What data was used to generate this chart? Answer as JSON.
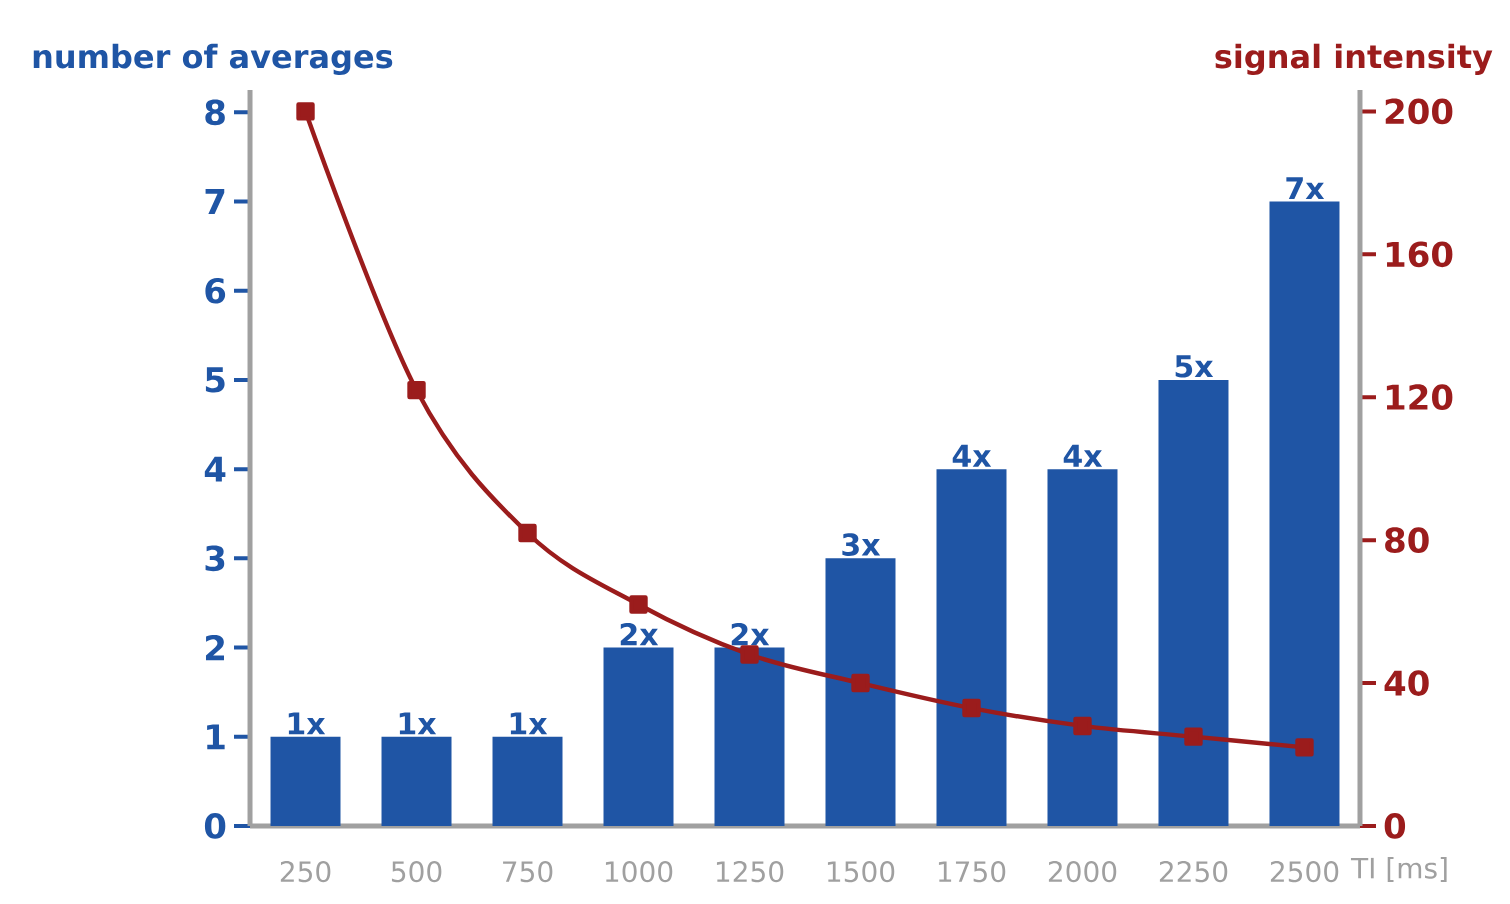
{
  "chart_data": {
    "type": "bar",
    "categories": [
      "250",
      "500",
      "750",
      "1000",
      "1250",
      "1500",
      "1750",
      "2000",
      "2250",
      "2500"
    ],
    "xlabel": "TI [ms]",
    "ylabel": "number of averages",
    "y2label": "signal intensity",
    "series": [
      {
        "color": "#1f55a5",
        "values": [
          1,
          1,
          1,
          2,
          2,
          3,
          4,
          4,
          5,
          7
        ],
        "value_labels": [
          "1x",
          "1x",
          "1x",
          "2x",
          "2x",
          "3x",
          "4x",
          "4x",
          "5x",
          "7x"
        ]
      },
      {
        "type": "line",
        "axis": "y2",
        "color": "#9b1c1c",
        "marker": "square",
        "line_style": "solid",
        "values": [
          200,
          122,
          82,
          62,
          48,
          40,
          33,
          28,
          25,
          22
        ]
      }
    ],
    "ylim": [
      0,
      8.25
    ],
    "yticks": [
      0,
      1,
      2,
      3,
      4,
      5,
      6,
      7,
      8
    ],
    "y2lim": [
      0,
      206
    ],
    "y2ticks": [
      0,
      40,
      80,
      120,
      160,
      200
    ]
  }
}
